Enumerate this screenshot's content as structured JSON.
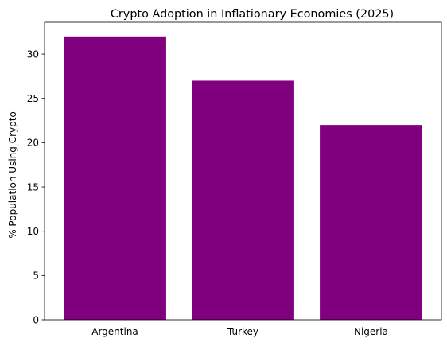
{
  "chart_data": {
    "type": "bar",
    "title": "Crypto Adoption in Inflationary Economies (2025)",
    "xlabel": "",
    "ylabel": "% Population Using Crypto",
    "categories": [
      "Argentina",
      "Turkey",
      "Nigeria"
    ],
    "values": [
      32,
      27,
      22
    ],
    "ylim": [
      0,
      33.6
    ],
    "yticks": [
      0,
      5,
      10,
      15,
      20,
      25,
      30
    ],
    "bar_color": "#800080",
    "grid": false,
    "legend": "none"
  }
}
